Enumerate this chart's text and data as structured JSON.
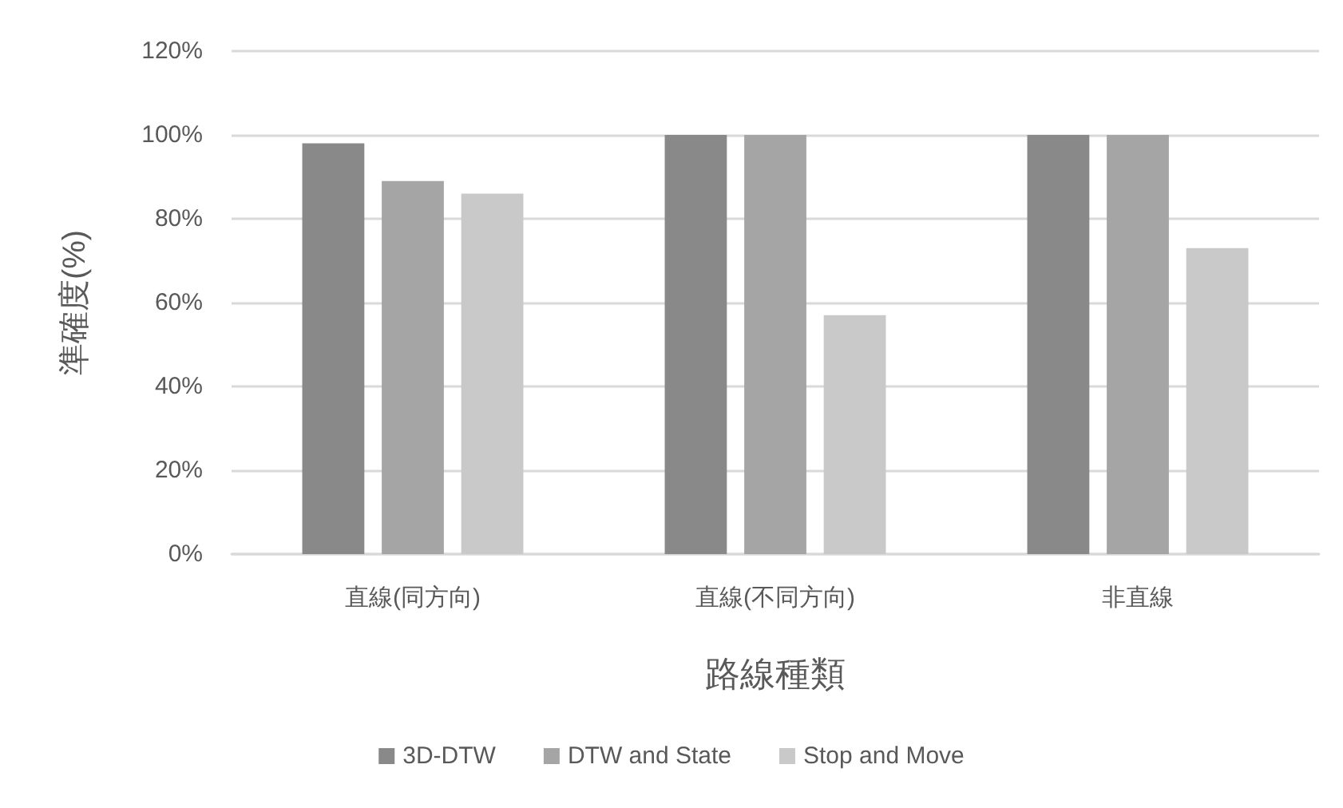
{
  "chart_data": {
    "type": "bar",
    "xlabel": "路線種類",
    "ylabel": "準確度(%)",
    "categories": [
      "直線(同方向)",
      "直線(不同方向)",
      "非直線"
    ],
    "series": [
      {
        "name": "3D-DTW",
        "color": "#898989",
        "values": [
          98,
          100,
          100
        ]
      },
      {
        "name": "DTW and State",
        "color": "#a5a5a5",
        "values": [
          89,
          100,
          100
        ]
      },
      {
        "name": "Stop and Move",
        "color": "#c9c9c9",
        "values": [
          86,
          57,
          73
        ]
      }
    ],
    "ylim": [
      0,
      120
    ],
    "yticks": [
      {
        "value": 0,
        "label": "0%"
      },
      {
        "value": 20,
        "label": "20%"
      },
      {
        "value": 40,
        "label": "40%"
      },
      {
        "value": 60,
        "label": "60%"
      },
      {
        "value": 80,
        "label": "80%"
      },
      {
        "value": 100,
        "label": "100%"
      },
      {
        "value": 120,
        "label": "120%"
      }
    ],
    "grid": "y",
    "legend": "bottom"
  }
}
